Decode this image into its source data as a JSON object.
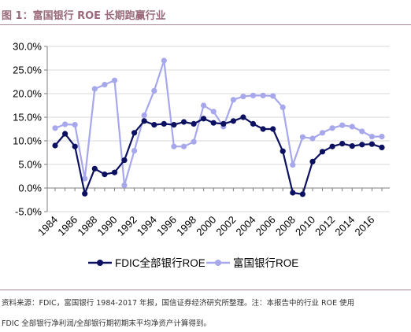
{
  "header": {
    "title": "图 1：富国银行 ROE 长期跑赢行业"
  },
  "colors": {
    "fdic": "#0c1060",
    "wells": "#a7a7ec",
    "grid": "#d9d9d9",
    "axis": "#7f7f7f",
    "rule": "#a88894",
    "title": "#9a6a7a"
  },
  "chart_data": {
    "type": "line",
    "title": "",
    "xlabel": "",
    "ylabel": "",
    "ylim": [
      -5.0,
      30.0
    ],
    "yticks": [
      "-5.0%",
      "0.0%",
      "5.0%",
      "10.0%",
      "15.0%",
      "20.0%",
      "25.0%",
      "30.0%"
    ],
    "ytick_values": [
      -5,
      0,
      5,
      10,
      15,
      20,
      25,
      30
    ],
    "xtick_labels": [
      "1984",
      "1986",
      "1988",
      "1990",
      "1992",
      "1994",
      "1996",
      "1998",
      "2000",
      "2002",
      "2004",
      "2006",
      "2008",
      "2010",
      "2012",
      "2014",
      "2016"
    ],
    "x": [
      1984,
      1985,
      1986,
      1987,
      1988,
      1989,
      1990,
      1991,
      1992,
      1993,
      1994,
      1995,
      1996,
      1997,
      1998,
      1999,
      2000,
      2001,
      2002,
      2003,
      2004,
      2005,
      2006,
      2007,
      2008,
      2009,
      2010,
      2011,
      2012,
      2013,
      2014,
      2015,
      2016,
      2017
    ],
    "grid": "horizontal",
    "legend_position": "bottom",
    "series": [
      {
        "name": "FDIC全部银行ROE",
        "color": "#0c1060",
        "values": [
          9.0,
          11.5,
          8.8,
          -1.2,
          4.1,
          2.9,
          3.3,
          5.9,
          11.7,
          14.2,
          13.4,
          13.6,
          13.4,
          14.0,
          13.6,
          14.7,
          13.8,
          13.6,
          14.2,
          15.0,
          13.6,
          12.5,
          12.5,
          7.8,
          -1.0,
          -1.3,
          5.6,
          7.7,
          8.8,
          9.4,
          8.9,
          9.2,
          9.3,
          8.6
        ]
      },
      {
        "name": "富国银行ROE",
        "color": "#a7a7ec",
        "values": [
          12.7,
          13.5,
          13.4,
          2.0,
          21.0,
          21.9,
          22.8,
          0.6,
          7.9,
          15.4,
          20.6,
          27.0,
          8.8,
          8.8,
          9.8,
          17.5,
          16.2,
          13.0,
          18.7,
          19.4,
          19.6,
          19.6,
          19.5,
          17.1,
          4.9,
          10.8,
          10.5,
          11.7,
          12.7,
          13.3,
          13.0,
          12.0,
          10.9,
          10.9
        ]
      }
    ]
  },
  "footer": {
    "line1": "资料来源：FDIC，富国银行 1984-2017 年报，国信证券经济研究所整理。注：本报告中的行业 ROE 使用",
    "line2": "FDIC 全部银行净利润/全部银行期初期末平均净资产计算得到。"
  }
}
